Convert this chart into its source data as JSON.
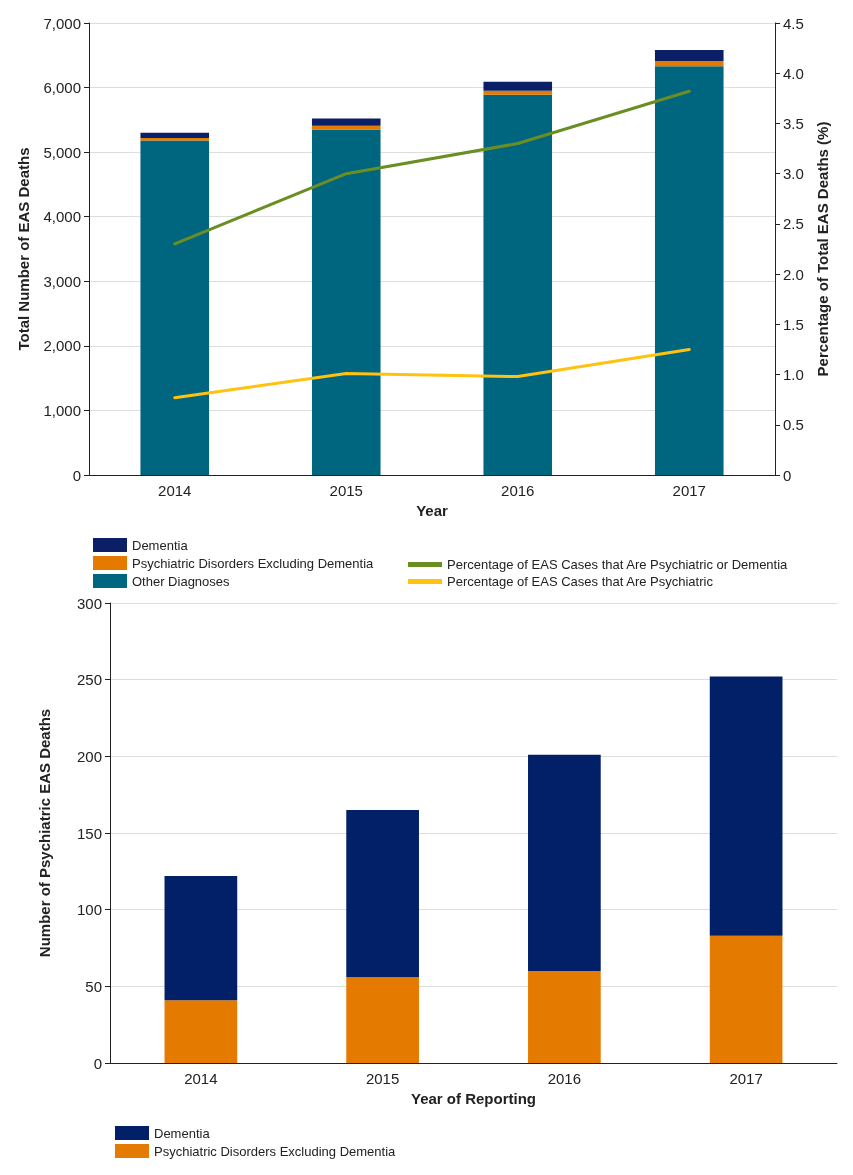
{
  "chart_data": [
    {
      "type": "bar",
      "xlabel": "Year",
      "ylabel": "Total Number of EAS Deaths",
      "y2label": "Percentage of Total EAS Deaths (%)",
      "categories": [
        "2014",
        "2015",
        "2016",
        "2017"
      ],
      "stacked": true,
      "series": [
        {
          "name": "Other Diagnoses",
          "color": "#00657f",
          "values": [
            5180,
            5350,
            5890,
            6330
          ]
        },
        {
          "name": "Psychiatric Disorders Excluding Dementia",
          "color": "#e57a00",
          "values": [
            40,
            60,
            60,
            80
          ]
        },
        {
          "name": "Dementia",
          "color": "#0b1f66",
          "values": [
            80,
            110,
            140,
            170
          ]
        },
        {
          "name": "Percentage of EAS Cases that Are Psychiatric or Dementia",
          "type": "line",
          "axis": "y2",
          "color": "#6b8e23",
          "values": [
            2.3,
            3.0,
            3.3,
            3.82
          ]
        },
        {
          "name": "Percentage of EAS Cases that Are Psychiatric",
          "type": "line",
          "axis": "y2",
          "color": "#ffc20e",
          "values": [
            0.77,
            1.01,
            0.98,
            1.25
          ]
        }
      ],
      "ylim": [
        0,
        7000
      ],
      "yticks": [
        0,
        {
          "value": 1000,
          "label": "1,000"
        },
        {
          "value": 2000,
          "label": "2,000"
        },
        {
          "value": 3000,
          "label": "3,000"
        },
        {
          "value": 4000,
          "label": "4,000"
        },
        {
          "value": 5000,
          "label": "5,000"
        },
        {
          "value": 6000,
          "label": "6,000"
        },
        {
          "value": 7000,
          "label": "7,000"
        }
      ],
      "y2lim": [
        0,
        4.5
      ],
      "y2ticks": [
        0,
        0.5,
        {
          "value": 1,
          "label": "1.0"
        },
        1.5,
        {
          "value": 2,
          "label": "2.0"
        },
        2.5,
        {
          "value": 3,
          "label": "3.0"
        },
        3.5,
        {
          "value": 4,
          "label": "4.0"
        },
        4.5
      ],
      "grid": "y",
      "legend": "bottom",
      "marker": "none",
      "line_style": "solid"
    },
    {
      "type": "bar",
      "xlabel": "Year of Reporting",
      "ylabel": "Number of Psychiatric EAS Deaths",
      "categories": [
        "2014",
        "2015",
        "2016",
        "2017"
      ],
      "stacked": true,
      "series": [
        {
          "name": "Psychiatric Disorders Excluding Dementia",
          "color": "#e57a00",
          "values": [
            41,
            56,
            60,
            83
          ]
        },
        {
          "name": "Dementia",
          "color": "#022068",
          "values": [
            81,
            109,
            141,
            169
          ]
        }
      ],
      "ylim": [
        0,
        300
      ],
      "yticks": [
        0,
        50,
        100,
        150,
        200,
        250,
        300
      ],
      "grid": "y",
      "legend": "bottom"
    }
  ]
}
